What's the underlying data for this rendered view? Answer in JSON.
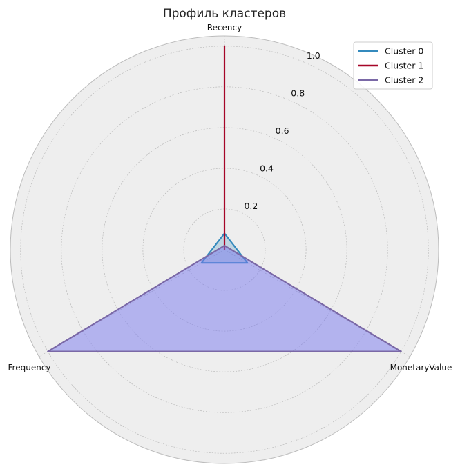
{
  "chart_data": {
    "type": "radar",
    "title": "Профиль кластеров",
    "axes": [
      "Recency",
      "Frequency",
      "MonetaryValue"
    ],
    "rlim": [
      0,
      1.05
    ],
    "rticks": [
      0.2,
      0.4,
      0.6,
      0.8,
      1.0
    ],
    "rtick_labels": [
      "0.2",
      "0.4",
      "0.6",
      "0.8",
      "1.0"
    ],
    "grid": true,
    "legend_position": "top-right",
    "series": [
      {
        "name": "Cluster 0",
        "values": [
          0.08,
          0.13,
          0.13
        ],
        "color": "#348ABD",
        "fill": "#348ABD"
      },
      {
        "name": "Cluster 1",
        "values": [
          1.0,
          0.0,
          0.0
        ],
        "color": "#A60628",
        "fill": "#A60628"
      },
      {
        "name": "Cluster 2",
        "values": [
          0.02,
          1.0,
          1.0
        ],
        "color": "#7A68A6",
        "fill": "#7777EE"
      }
    ]
  }
}
